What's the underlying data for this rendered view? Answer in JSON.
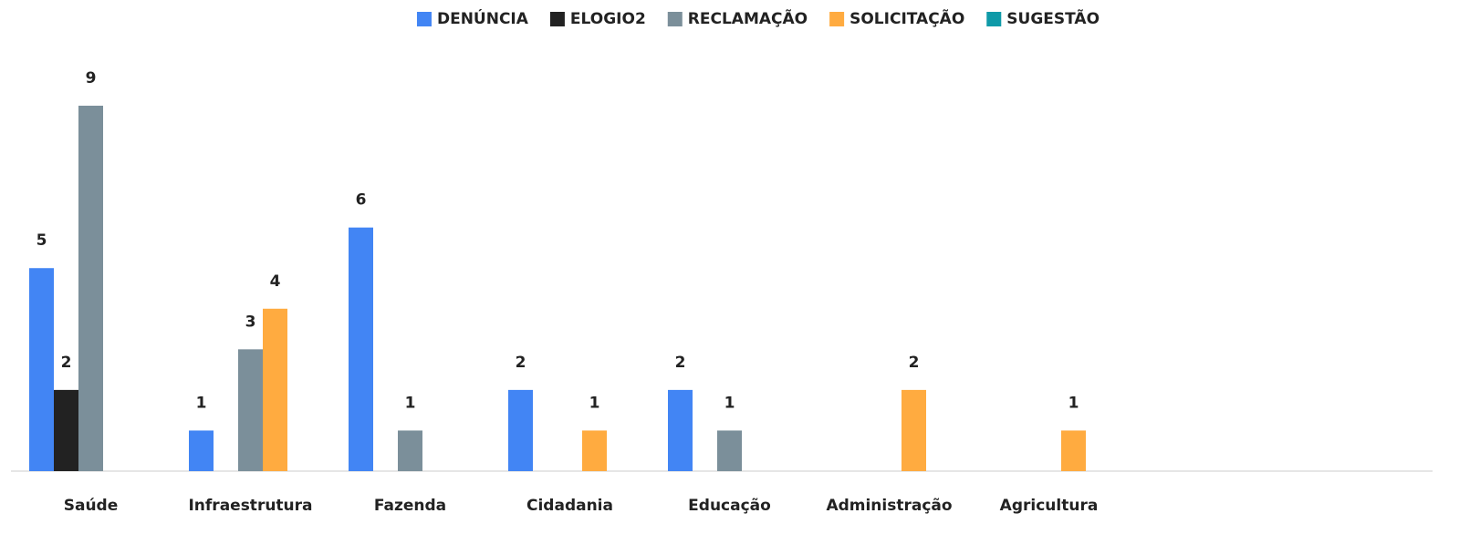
{
  "chart_data": {
    "type": "bar",
    "categories": [
      "Saúde",
      "Infraestrutura",
      "Fazenda",
      "Cidadania",
      "Educação",
      "Administração",
      "Agricultura"
    ],
    "series": [
      {
        "name": "DENÚNCIA",
        "color": "#4285f4",
        "values": [
          5,
          1,
          6,
          2,
          2,
          null,
          null
        ]
      },
      {
        "name": "ELOGIO2",
        "color": "#222222",
        "values": [
          2,
          null,
          null,
          null,
          null,
          null,
          null
        ]
      },
      {
        "name": "RECLAMAÇÃO",
        "color": "#7b8f9a",
        "values": [
          9,
          3,
          1,
          null,
          1,
          null,
          null
        ]
      },
      {
        "name": "SOLICITAÇÃO",
        "color": "#ffab40",
        "values": [
          null,
          4,
          null,
          1,
          null,
          2,
          1
        ]
      },
      {
        "name": "SUGESTÃO",
        "color": "#0f9aa8",
        "values": [
          null,
          null,
          null,
          null,
          null,
          null,
          null
        ]
      }
    ],
    "ylim": [
      0,
      9
    ],
    "legend": "top"
  }
}
